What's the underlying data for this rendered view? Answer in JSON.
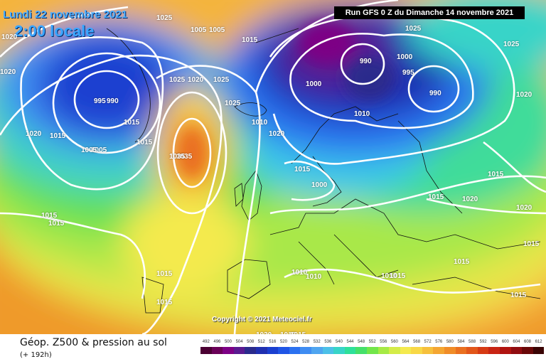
{
  "header": {
    "date": "Lundi 22 novembre 2021",
    "time": "2:00 locale",
    "run": "Run GFS 0 Z du Dimanche 14 novembre 2021"
  },
  "footer": {
    "product": "Géop. Z500 & pression au sol",
    "hours": "(+ 192h)",
    "copyright": "Copyright © 2021 Meteociel.fr"
  },
  "scale": {
    "labels": [
      "492",
      "496",
      "500",
      "504",
      "508",
      "512",
      "516",
      "520",
      "524",
      "528",
      "532",
      "536",
      "540",
      "544",
      "548",
      "552",
      "556",
      "560",
      "564",
      "568",
      "572",
      "576",
      "580",
      "584",
      "588",
      "592",
      "596",
      "600",
      "604",
      "608",
      "612"
    ],
    "colors": [
      "#4b0033",
      "#6a0058",
      "#7d0085",
      "#5a1a90",
      "#2a2a8c",
      "#1f2fb0",
      "#1a3fd0",
      "#1f55e6",
      "#2b71f0",
      "#3f8cf2",
      "#4fa5f0",
      "#4cc0e8",
      "#38d4c8",
      "#2ee09a",
      "#45e06a",
      "#72e64a",
      "#a6ea45",
      "#d4ec48",
      "#f4ea4e",
      "#f8d846",
      "#f6c03c",
      "#f4a632",
      "#f08c28",
      "#ea7020",
      "#e2561a",
      "#d63a14",
      "#c82414",
      "#b01410",
      "#900c10",
      "#6a0808",
      "#3a0404"
    ]
  },
  "isobar_labels": [
    "1025",
    "1020",
    "1005",
    "1020",
    "995",
    "990",
    "1005",
    "1015",
    "1020",
    "1005",
    "1015",
    "1015",
    "1025",
    "1020",
    "1015",
    "1035",
    "1025",
    "1025",
    "1010",
    "1020",
    "1015",
    "1000",
    "1025",
    "990",
    "1000",
    "995",
    "1000",
    "990",
    "1010",
    "1020",
    "1025",
    "1035",
    "1015",
    "1015",
    "1005",
    "1015",
    "1020",
    "1020",
    "1015",
    "1015",
    "1010",
    "1010",
    "1010",
    "1015",
    "1015",
    "1015",
    "1015",
    "1015",
    "1020",
    "1015",
    "1015"
  ]
}
